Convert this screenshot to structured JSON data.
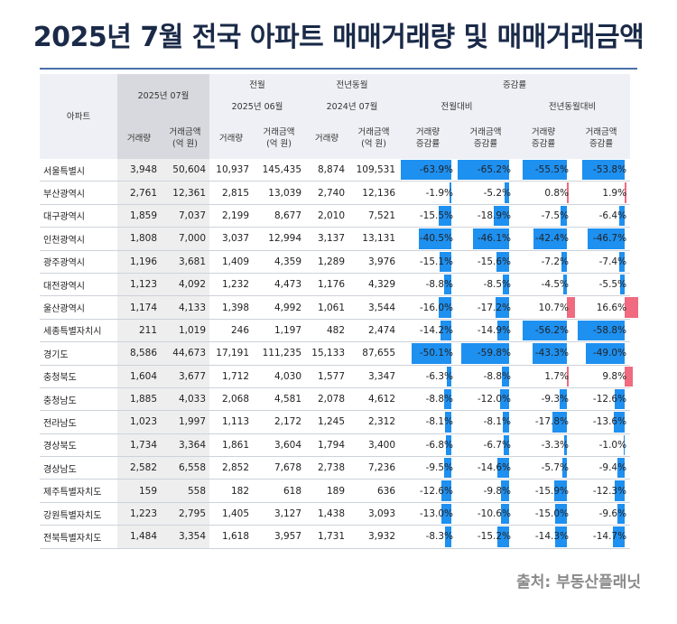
{
  "title": "2025년 7월 전국 아파트 매매거래량 및 매매거래금액",
  "source": "출처: 부동산플래닛",
  "colors": {
    "negative": "#1e90f0",
    "positive": "#f06a80",
    "title": "#1a2a48"
  },
  "header": {
    "region": "아파트",
    "cur_period": "2025년 07월",
    "prev_month_group": "전월",
    "prev_month_period": "2025년 06월",
    "prev_year_group": "전년동월",
    "prev_year_period": "2024년 07월",
    "change_group": "증감률",
    "mom": "전월대비",
    "yoy": "전년동월대비",
    "volume": "거래량",
    "amount_line1": "거래금액",
    "amount_line2": "(억 원)",
    "vol_rate_line1": "거래량",
    "amt_rate_line1": "거래금액",
    "rate_line2": "증감률"
  },
  "rows": [
    {
      "region": "서울특별시",
      "v25": "3,948",
      "a25": "50,604",
      "v_pm": "10,937",
      "a_pm": "145,435",
      "v_py": "8,874",
      "a_py": "109,531",
      "mom_v": "-63.9%",
      "mom_a": "-65.2%",
      "yoy_v": "-55.5%",
      "yoy_a": "-53.8%",
      "vals": [
        -63.9,
        -65.2,
        -55.5,
        -53.8
      ]
    },
    {
      "region": "부산광역시",
      "v25": "2,761",
      "a25": "12,361",
      "v_pm": "2,815",
      "a_pm": "13,039",
      "v_py": "2,740",
      "a_py": "12,136",
      "mom_v": "-1.9%",
      "mom_a": "-5.2%",
      "yoy_v": "0.8%",
      "yoy_a": "1.9%",
      "vals": [
        -1.9,
        -5.2,
        0.8,
        1.9
      ]
    },
    {
      "region": "대구광역시",
      "v25": "1,859",
      "a25": "7,037",
      "v_pm": "2,199",
      "a_pm": "8,677",
      "v_py": "2,010",
      "a_py": "7,521",
      "mom_v": "-15.5%",
      "mom_a": "-18.9%",
      "yoy_v": "-7.5%",
      "yoy_a": "-6.4%",
      "vals": [
        -15.5,
        -18.9,
        -7.5,
        -6.4
      ]
    },
    {
      "region": "인천광역시",
      "v25": "1,808",
      "a25": "7,000",
      "v_pm": "3,037",
      "a_pm": "12,994",
      "v_py": "3,137",
      "a_py": "13,131",
      "mom_v": "-40.5%",
      "mom_a": "-46.1%",
      "yoy_v": "-42.4%",
      "yoy_a": "-46.7%",
      "vals": [
        -40.5,
        -46.1,
        -42.4,
        -46.7
      ]
    },
    {
      "region": "광주광역시",
      "v25": "1,196",
      "a25": "3,681",
      "v_pm": "1,409",
      "a_pm": "4,359",
      "v_py": "1,289",
      "a_py": "3,976",
      "mom_v": "-15.1%",
      "mom_a": "-15.6%",
      "yoy_v": "-7.2%",
      "yoy_a": "-7.4%",
      "vals": [
        -15.1,
        -15.6,
        -7.2,
        -7.4
      ]
    },
    {
      "region": "대전광역시",
      "v25": "1,123",
      "a25": "4,092",
      "v_pm": "1,232",
      "a_pm": "4,473",
      "v_py": "1,176",
      "a_py": "4,329",
      "mom_v": "-8.8%",
      "mom_a": "-8.5%",
      "yoy_v": "-4.5%",
      "yoy_a": "-5.5%",
      "vals": [
        -8.8,
        -8.5,
        -4.5,
        -5.5
      ]
    },
    {
      "region": "울산광역시",
      "v25": "1,174",
      "a25": "4,133",
      "v_pm": "1,398",
      "a_pm": "4,992",
      "v_py": "1,061",
      "a_py": "3,544",
      "mom_v": "-16.0%",
      "mom_a": "-17.2%",
      "yoy_v": "10.7%",
      "yoy_a": "16.6%",
      "vals": [
        -16.0,
        -17.2,
        10.7,
        16.6
      ]
    },
    {
      "region": "세종특별자치시",
      "v25": "211",
      "a25": "1,019",
      "v_pm": "246",
      "a_pm": "1,197",
      "v_py": "482",
      "a_py": "2,474",
      "mom_v": "-14.2%",
      "mom_a": "-14.9%",
      "yoy_v": "-56.2%",
      "yoy_a": "-58.8%",
      "vals": [
        -14.2,
        -14.9,
        -56.2,
        -58.8
      ]
    },
    {
      "region": "경기도",
      "v25": "8,586",
      "a25": "44,673",
      "v_pm": "17,191",
      "a_pm": "111,235",
      "v_py": "15,133",
      "a_py": "87,655",
      "mom_v": "-50.1%",
      "mom_a": "-59.8%",
      "yoy_v": "-43.3%",
      "yoy_a": "-49.0%",
      "vals": [
        -50.1,
        -59.8,
        -43.3,
        -49.0
      ]
    },
    {
      "region": "충청북도",
      "v25": "1,604",
      "a25": "3,677",
      "v_pm": "1,712",
      "a_pm": "4,030",
      "v_py": "1,577",
      "a_py": "3,347",
      "mom_v": "-6.3%",
      "mom_a": "-8.8%",
      "yoy_v": "1.7%",
      "yoy_a": "9.8%",
      "vals": [
        -6.3,
        -8.8,
        1.7,
        9.8
      ]
    },
    {
      "region": "충청남도",
      "v25": "1,885",
      "a25": "4,033",
      "v_pm": "2,068",
      "a_pm": "4,581",
      "v_py": "2,078",
      "a_py": "4,612",
      "mom_v": "-8.8%",
      "mom_a": "-12.0%",
      "yoy_v": "-9.3%",
      "yoy_a": "-12.6%",
      "vals": [
        -8.8,
        -12.0,
        -9.3,
        -12.6
      ]
    },
    {
      "region": "전라남도",
      "v25": "1,023",
      "a25": "1,997",
      "v_pm": "1,113",
      "a_pm": "2,172",
      "v_py": "1,245",
      "a_py": "2,312",
      "mom_v": "-8.1%",
      "mom_a": "-8.1%",
      "yoy_v": "-17.8%",
      "yoy_a": "-13.6%",
      "vals": [
        -8.1,
        -8.1,
        -17.8,
        -13.6
      ]
    },
    {
      "region": "경상북도",
      "v25": "1,734",
      "a25": "3,364",
      "v_pm": "1,861",
      "a_pm": "3,604",
      "v_py": "1,794",
      "a_py": "3,400",
      "mom_v": "-6.8%",
      "mom_a": "-6.7%",
      "yoy_v": "-3.3%",
      "yoy_a": "-1.0%",
      "vals": [
        -6.8,
        -6.7,
        -3.3,
        -1.0
      ]
    },
    {
      "region": "경상남도",
      "v25": "2,582",
      "a25": "6,558",
      "v_pm": "2,852",
      "a_pm": "7,678",
      "v_py": "2,738",
      "a_py": "7,236",
      "mom_v": "-9.5%",
      "mom_a": "-14.6%",
      "yoy_v": "-5.7%",
      "yoy_a": "-9.4%",
      "vals": [
        -9.5,
        -14.6,
        -5.7,
        -9.4
      ]
    },
    {
      "region": "제주특별자치도",
      "v25": "159",
      "a25": "558",
      "v_pm": "182",
      "a_pm": "618",
      "v_py": "189",
      "a_py": "636",
      "mom_v": "-12.6%",
      "mom_a": "-9.8%",
      "yoy_v": "-15.9%",
      "yoy_a": "-12.3%",
      "vals": [
        -12.6,
        -9.8,
        -15.9,
        -12.3
      ]
    },
    {
      "region": "강원특별자치도",
      "v25": "1,223",
      "a25": "2,795",
      "v_pm": "1,405",
      "a_pm": "3,127",
      "v_py": "1,438",
      "a_py": "3,093",
      "mom_v": "-13.0%",
      "mom_a": "-10.6%",
      "yoy_v": "-15.0%",
      "yoy_a": "-9.6%",
      "vals": [
        -13.0,
        -10.6,
        -15.0,
        -9.6
      ]
    },
    {
      "region": "전북특별자치도",
      "v25": "1,484",
      "a25": "3,354",
      "v_pm": "1,618",
      "a_pm": "3,957",
      "v_py": "1,731",
      "a_py": "3,932",
      "mom_v": "-8.3%",
      "mom_a": "-15.2%",
      "yoy_v": "-14.3%",
      "yoy_a": "-14.7%",
      "vals": [
        -8.3,
        -15.2,
        -14.3,
        -14.7
      ]
    }
  ]
}
